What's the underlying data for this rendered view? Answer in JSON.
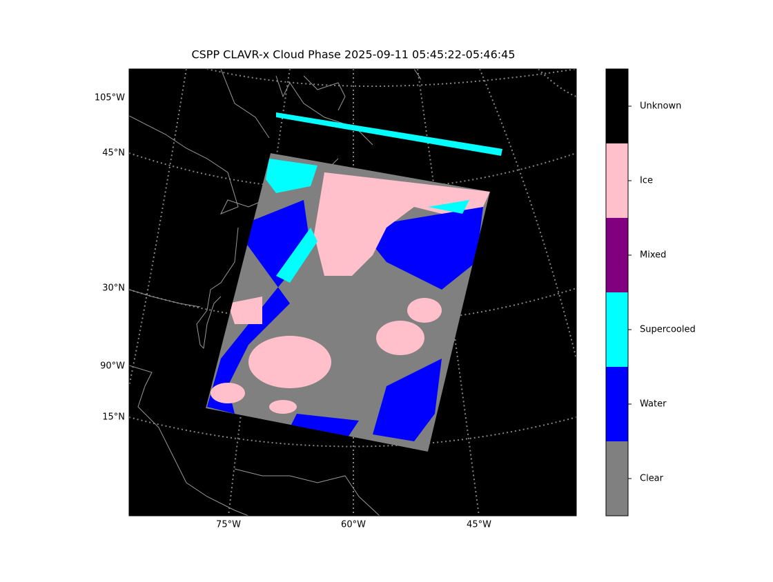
{
  "title": "CSPP CLAVR-x Cloud Phase 2025-09-11 05:45:22-05:46:45",
  "map": {
    "bottom_labels": [
      "75°W",
      "60°W",
      "45°W"
    ],
    "left_labels": [
      "105°W",
      "45°N",
      "30°N",
      "90°W",
      "15°N"
    ]
  },
  "colorbar": {
    "classes": [
      {
        "label": "Unknown",
        "color": "#000000"
      },
      {
        "label": "Ice",
        "color": "#ffc0cb"
      },
      {
        "label": "Mixed",
        "color": "#800080"
      },
      {
        "label": "Supercooled",
        "color": "#00ffff"
      },
      {
        "label": "Water",
        "color": "#0000ff"
      },
      {
        "label": "Clear",
        "color": "#808080"
      }
    ]
  }
}
